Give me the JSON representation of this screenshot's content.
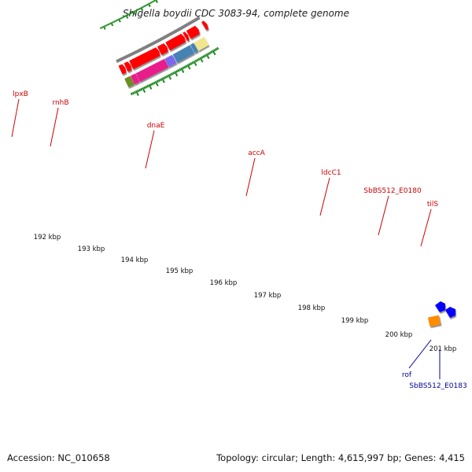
{
  "title": "Shigella boydii CDC 3083-94, complete genome",
  "footer": {
    "accession": "Accession: NC_010658",
    "topology": "Topology: circular; Length: 4,615,997 bp; Genes: 4,415"
  },
  "colors": {
    "gene_label": "#cc0000",
    "gene_label_blue": "#000099",
    "forward_cds": "#ff0000",
    "ruler_tick": "#228b22",
    "backbone": "#808080"
  },
  "ruler": {
    "unit": "kbp",
    "labels": [
      "192 kbp",
      "193 kbp",
      "194 kbp",
      "195 kbp",
      "196 kbp",
      "197 kbp",
      "198 kbp",
      "199 kbp",
      "200 kbp",
      "201 kbp"
    ]
  },
  "functional_segments": [
    {
      "color": "#6b8e23"
    },
    {
      "color": "#e91e8c"
    },
    {
      "color": "#e91e8c"
    },
    {
      "color": "#7b68ee"
    },
    {
      "color": "#4682b4"
    },
    {
      "color": "#4682b4"
    },
    {
      "color": "#f0e68c"
    }
  ],
  "gene_labels": [
    {
      "text": "lpxB",
      "color": "#cc0000"
    },
    {
      "text": "rnhB",
      "color": "#cc0000"
    },
    {
      "text": "dnaE",
      "color": "#cc0000"
    },
    {
      "text": "accA",
      "color": "#cc0000"
    },
    {
      "text": "ldcC1",
      "color": "#cc0000"
    },
    {
      "text": "SbBS512_E0180",
      "color": "#cc0000"
    },
    {
      "text": "tilS",
      "color": "#cc0000"
    },
    {
      "text": "rof",
      "color": "#000099"
    },
    {
      "text": "SbBS512_E0183",
      "color": "#000099"
    }
  ]
}
